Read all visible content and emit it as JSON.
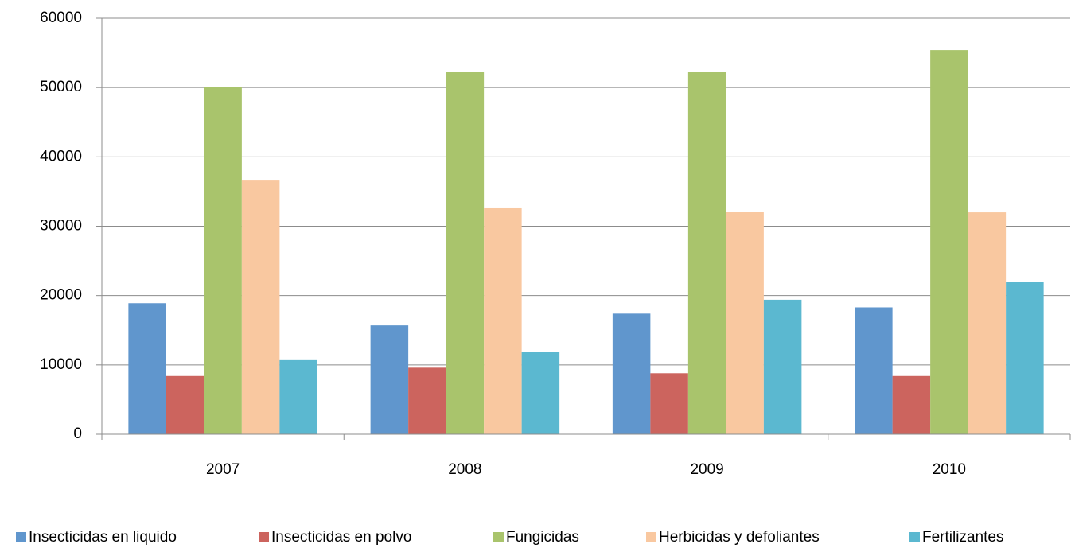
{
  "chart_data": {
    "type": "bar",
    "categories": [
      "2007",
      "2008",
      "2009",
      "2010"
    ],
    "series": [
      {
        "name": "Insecticidas en liquido",
        "color": "#6096cd",
        "values": [
          18900,
          15700,
          17400,
          18300
        ]
      },
      {
        "name": "Insecticidas en polvo",
        "color": "#cc645e",
        "values": [
          8400,
          9600,
          8800,
          8400
        ]
      },
      {
        "name": "Fungicidas",
        "color": "#a9c46c",
        "values": [
          50100,
          52200,
          52300,
          55400
        ]
      },
      {
        "name": "Herbicidas y defoliantes",
        "color": "#f9c8a0",
        "values": [
          36700,
          32700,
          32100,
          32000
        ]
      },
      {
        "name": "Fertilizantes",
        "color": "#5bb8d0",
        "values": [
          10800,
          11900,
          19400,
          22000
        ]
      }
    ],
    "ylim": [
      0,
      60000
    ],
    "yticks": [
      0,
      10000,
      20000,
      30000,
      40000,
      50000,
      60000
    ],
    "grid": true,
    "legend": "bottom"
  }
}
